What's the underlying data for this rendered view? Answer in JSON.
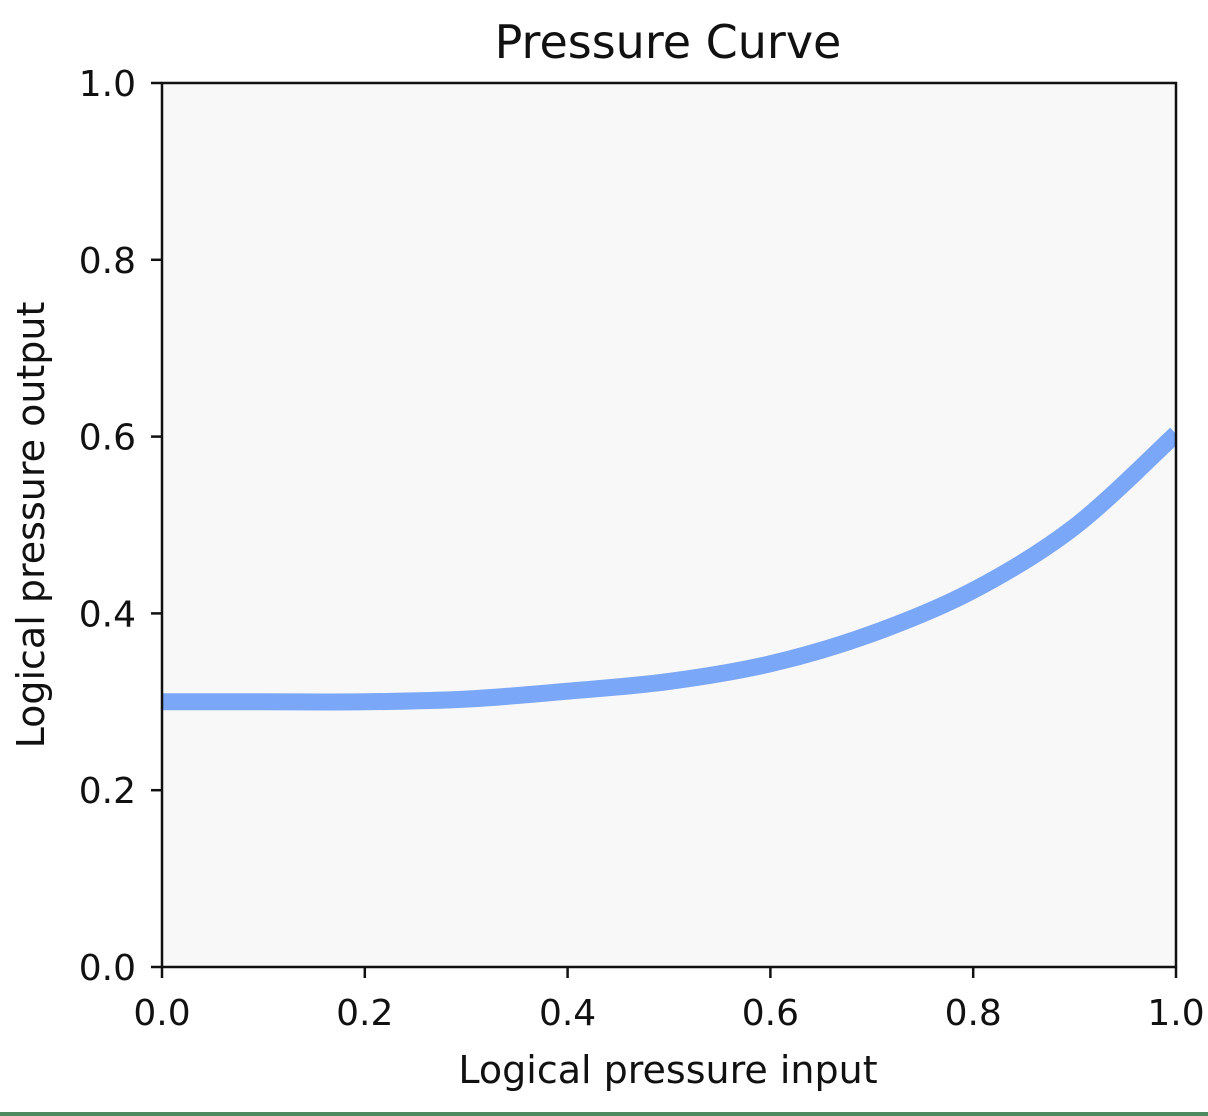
{
  "chart_data": {
    "type": "line",
    "title": "Pressure Curve",
    "xlabel": "Logical pressure input",
    "ylabel": "Logical pressure output",
    "xlim": [
      0.0,
      1.0
    ],
    "ylim": [
      0.0,
      1.0
    ],
    "xticks": [
      "0.0",
      "0.2",
      "0.4",
      "0.6",
      "0.8",
      "1.0"
    ],
    "yticks": [
      "0.0",
      "0.2",
      "0.4",
      "0.6",
      "0.8",
      "1.0"
    ],
    "grid": false,
    "legend": "none",
    "colors": {
      "plot_background": "#f8f8f8",
      "line": "#7aa7f7",
      "axes": "#111111"
    },
    "series": [
      {
        "x": [
          0.0,
          0.1,
          0.2,
          0.3,
          0.4,
          0.5,
          0.6,
          0.7,
          0.8,
          0.9,
          1.0
        ],
        "y": [
          0.3,
          0.3,
          0.3,
          0.303,
          0.312,
          0.323,
          0.343,
          0.377,
          0.426,
          0.498,
          0.603
        ]
      }
    ]
  }
}
